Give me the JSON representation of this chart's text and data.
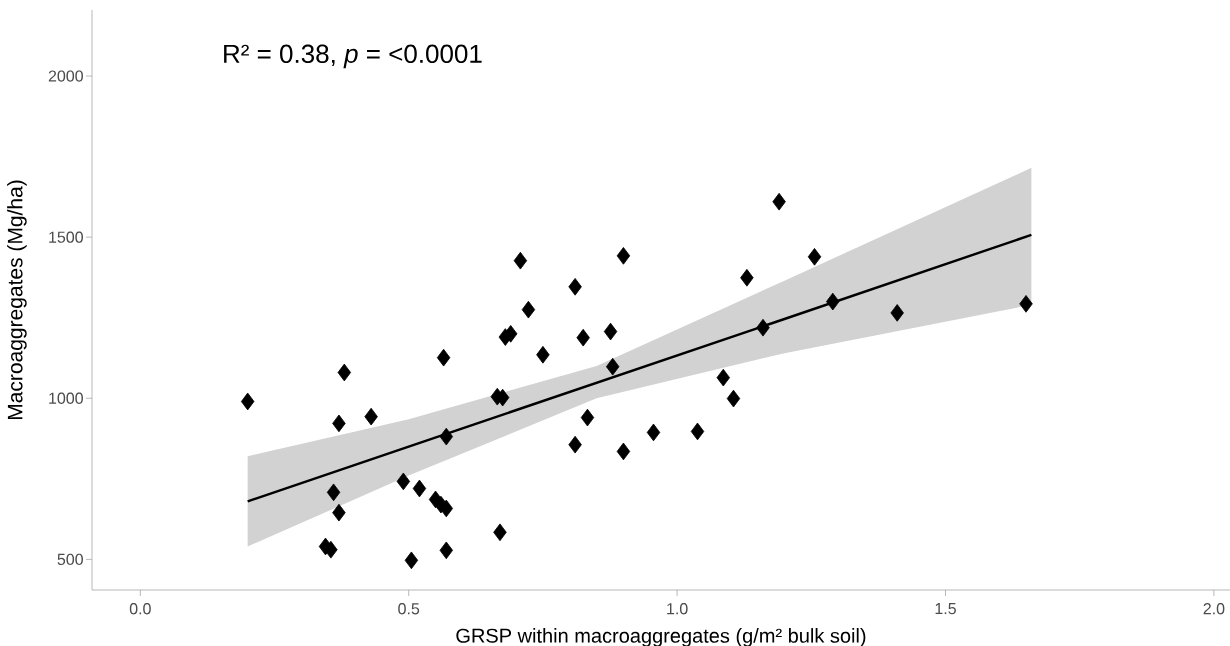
{
  "chart_data": {
    "type": "scatter",
    "xlabel": "GRSP within macroaggregates (g/m² bulk soil)",
    "ylabel": "Macroaggregates (Mg/ha)",
    "annotations": [
      "R² = 0.38, *p* = <0.0001"
    ],
    "xlim": [
      -0.09,
      2.03
    ],
    "ylim": [
      405,
      2205
    ],
    "xticks": [
      {
        "value": 0,
        "label": "0.0"
      },
      {
        "value": 0.5,
        "label": "0.5"
      },
      {
        "value": 1,
        "label": "1.0"
      },
      {
        "value": 1.5,
        "label": "1.5"
      },
      {
        "value": 2,
        "label": "2.0"
      }
    ],
    "yticks": [
      500,
      1000,
      1500,
      2000
    ],
    "series": [
      {
        "type": "line",
        "color": "#000000",
        "line_style": "solid",
        "x": [
          0.2,
          0.5,
          0.85,
          1.2,
          1.66
        ],
        "values": [
          680,
          850,
          1048,
          1246,
          1507
        ],
        "lower": [
          540,
          760,
          1000,
          1140,
          1290
        ],
        "upper": [
          820,
          935,
          1100,
          1365,
          1715
        ]
      },
      {
        "type": "scatter",
        "color": "#000000",
        "marker": "diamond",
        "x": [
          0.2,
          0.36,
          0.345,
          0.355,
          0.37,
          0.37,
          0.38,
          0.43,
          0.49,
          0.52,
          0.55,
          0.56,
          0.57,
          0.505,
          0.57,
          0.565,
          0.57,
          0.665,
          0.675,
          0.67,
          0.708,
          0.9,
          0.81,
          0.723,
          0.68,
          0.69,
          0.75,
          0.825,
          0.876,
          0.88,
          1.13,
          1.16,
          1.086,
          1.105,
          0.833,
          0.81,
          0.9,
          0.956,
          1.038,
          1.19,
          1.256,
          1.29,
          1.41,
          1.65
        ],
        "values": [
          990,
          708,
          540,
          530,
          645,
          922,
          1080,
          943,
          742,
          720,
          686,
          670,
          658,
          497,
          528,
          1126,
          881,
          1005,
          1002,
          584,
          1427,
          1442,
          1346,
          1275,
          1190,
          1200,
          1135,
          1188,
          1207,
          1098,
          1374,
          1219,
          1064,
          999,
          940,
          856,
          835,
          894,
          897,
          1610,
          1439,
          1300,
          1265,
          1293
        ]
      }
    ]
  }
}
